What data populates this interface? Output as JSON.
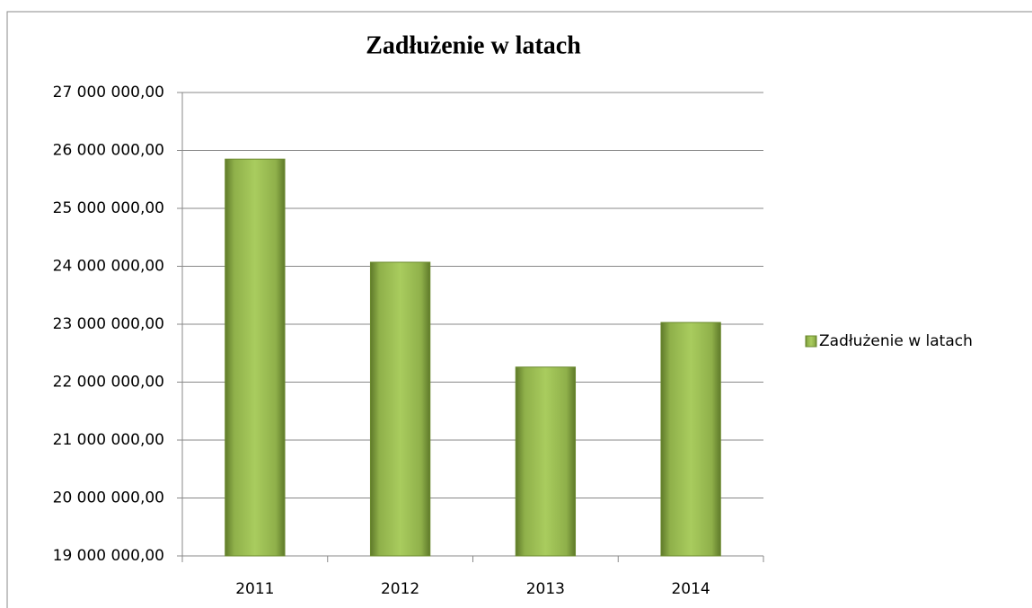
{
  "chart_data": {
    "type": "bar",
    "title": "Zadłużenie w latach",
    "categories": [
      "2011",
      "2012",
      "2013",
      "2014"
    ],
    "series": [
      {
        "name": "Zadłużenie w latach",
        "color": "#9bbb59",
        "values": [
          25850000,
          24070000,
          22260000,
          23030000
        ]
      }
    ],
    "ylim": [
      19000000,
      27000000
    ],
    "yticks": [
      {
        "value": 19000000,
        "label": "19 000 000,00"
      },
      {
        "value": 20000000,
        "label": "20 000 000,00"
      },
      {
        "value": 21000000,
        "label": "21 000 000,00"
      },
      {
        "value": 22000000,
        "label": "22 000 000,00"
      },
      {
        "value": 23000000,
        "label": "23 000 000,00"
      },
      {
        "value": 24000000,
        "label": "24 000 000,00"
      },
      {
        "value": 25000000,
        "label": "25 000 000,00"
      },
      {
        "value": 26000000,
        "label": "26 000 000,00"
      },
      {
        "value": 27000000,
        "label": "27 000 000,00"
      }
    ],
    "grid": true,
    "legend": "right"
  }
}
